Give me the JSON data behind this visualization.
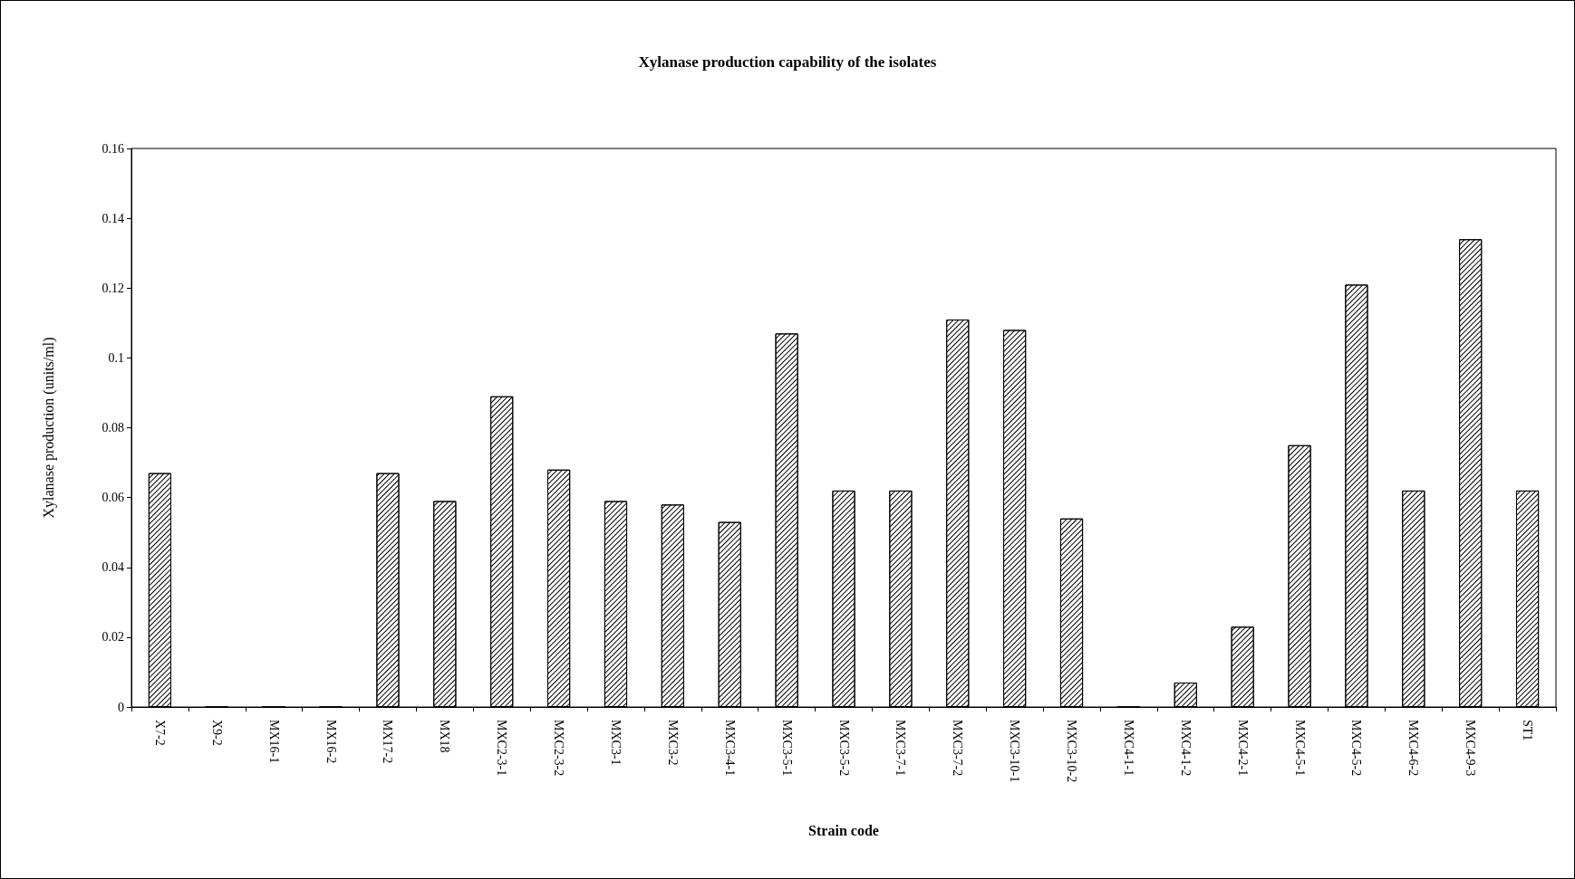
{
  "chart_data": {
    "type": "bar",
    "title": "Xylanase production capability of the isolates",
    "xlabel": "Strain code",
    "ylabel": "Xylanase production (units/ml)",
    "categories": [
      "X7-2",
      "X9-2",
      "MX16-1",
      "MX16-2",
      "MX17-2",
      "MX18",
      "MXC2-3-1",
      "MXC2-3-2",
      "MXC3-1",
      "MXC3-2",
      "MXC3-4-1",
      "MXC3-5-1",
      "MXC3-5-2",
      "MXC3-7-1",
      "MXC3-7-2",
      "MXC3-10-1",
      "MXC3-10-2",
      "MXC4-1-1",
      "MXC4-1-2",
      "MXC4-2-1",
      "MXC4-5-1",
      "MXC4-5-2",
      "MXC4-6-2",
      "MXC4-9-3",
      "ST1"
    ],
    "values": [
      0.067,
      0,
      0,
      0,
      0.067,
      0.059,
      0.089,
      0.068,
      0.059,
      0.058,
      0.053,
      0.107,
      0.062,
      0.062,
      0.111,
      0.108,
      0.054,
      0,
      0.007,
      0.023,
      0.075,
      0.121,
      0.062,
      0.134,
      0.062
    ],
    "color": "#000000",
    "ylim": [
      0,
      0.16
    ],
    "yticks": [
      0,
      0.02,
      0.04,
      0.06,
      0.08,
      0.1,
      0.12,
      0.14,
      0.16
    ],
    "grid": false
  }
}
